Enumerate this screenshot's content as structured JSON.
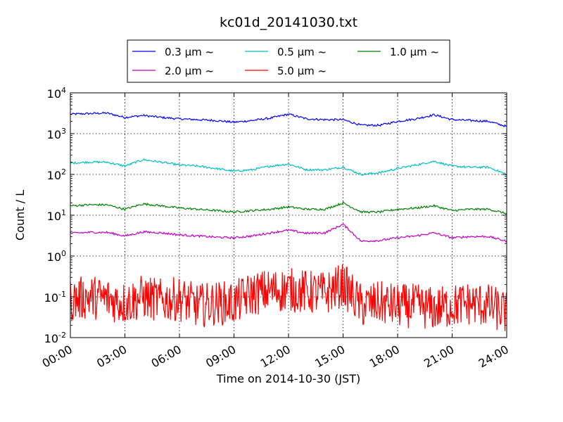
{
  "chart_data": {
    "type": "line",
    "title": "kc01d_20141030.txt",
    "xlabel": "Time on 2014-10-30 (JST)",
    "ylabel": "Count / L",
    "yscale": "log",
    "ylim": [
      0.01,
      10000
    ],
    "xlim": [
      "00:00",
      "24:00"
    ],
    "grid": true,
    "legend_position": "top-center",
    "x_tick_labels": [
      "00:00",
      "03:00",
      "06:00",
      "09:00",
      "12:00",
      "15:00",
      "18:00",
      "21:00",
      "24:00"
    ],
    "y_tick_labels": [
      {
        "base": "10",
        "exp": "-2"
      },
      {
        "base": "10",
        "exp": "-1"
      },
      {
        "base": "10",
        "exp": "0"
      },
      {
        "base": "10",
        "exp": "1"
      },
      {
        "base": "10",
        "exp": "2"
      },
      {
        "base": "10",
        "exp": "3"
      },
      {
        "base": "10",
        "exp": "4"
      }
    ],
    "x": [
      "00:00",
      "01:00",
      "02:00",
      "03:00",
      "04:00",
      "05:00",
      "06:00",
      "07:00",
      "08:00",
      "09:00",
      "10:00",
      "11:00",
      "12:00",
      "13:00",
      "14:00",
      "15:00",
      "16:00",
      "17:00",
      "18:00",
      "19:00",
      "20:00",
      "21:00",
      "22:00",
      "23:00",
      "24:00"
    ],
    "series": [
      {
        "name": "0.3 μm ~",
        "color": "#0000ff",
        "values": [
          3000,
          3100,
          3200,
          2500,
          2800,
          2500,
          2300,
          2200,
          2100,
          1900,
          2100,
          2400,
          3000,
          2300,
          2200,
          2200,
          1600,
          1600,
          2000,
          2300,
          2900,
          2200,
          2100,
          2000,
          1500
        ]
      },
      {
        "name": "0.5 μm ~",
        "color": "#00bfbf",
        "values": [
          190,
          200,
          200,
          160,
          230,
          200,
          170,
          160,
          140,
          120,
          130,
          160,
          180,
          130,
          130,
          150,
          100,
          110,
          140,
          170,
          210,
          160,
          150,
          150,
          100
        ]
      },
      {
        "name": "1.0 μm ~",
        "color": "#008000",
        "values": [
          17,
          18,
          18,
          14,
          19,
          17,
          15,
          14,
          13,
          12,
          13,
          14,
          16,
          14,
          14,
          20,
          12,
          12,
          14,
          15,
          17,
          13,
          14,
          14,
          11
        ]
      },
      {
        "name": "2.0 μm ~",
        "color": "#bf00bf",
        "values": [
          3.6,
          3.8,
          3.8,
          3.1,
          3.9,
          3.7,
          3.3,
          3.1,
          2.9,
          2.8,
          3.1,
          3.7,
          4.3,
          3.6,
          3.7,
          6.0,
          2.3,
          2.4,
          2.8,
          3.1,
          3.7,
          2.8,
          3.0,
          3.0,
          2.3
        ]
      },
      {
        "name": "5.0 μm ~",
        "color": "#ff0000",
        "values": [
          0.08,
          0.1,
          0.09,
          0.07,
          0.1,
          0.08,
          0.09,
          0.06,
          0.07,
          0.07,
          0.12,
          0.14,
          0.15,
          0.13,
          0.12,
          0.2,
          0.06,
          0.07,
          0.06,
          0.06,
          0.05,
          0.06,
          0.07,
          0.06,
          0.04
        ]
      }
    ]
  }
}
